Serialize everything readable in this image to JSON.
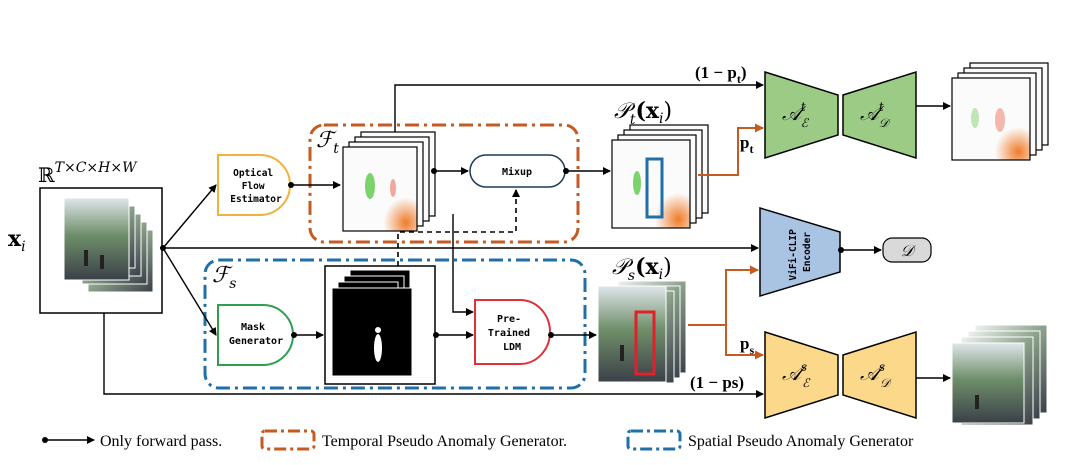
{
  "input": {
    "dims": "ℝ^{T×C×H×W}",
    "dims_base": "ℝ",
    "dims_sup": "T×C×H×W",
    "var": "x",
    "var_sub": "i"
  },
  "blocks": {
    "optical_flow": [
      "Optical",
      "Flow",
      "Estimator"
    ],
    "mask_generator": [
      "Mask",
      "Generator"
    ],
    "mixup": "Mixup",
    "ldm": [
      "Pre-",
      "Trained",
      "LDM"
    ],
    "vifi": [
      "ViFi-CLIP",
      "Encoder"
    ],
    "d_out": "𝒟"
  },
  "groups": {
    "ft": {
      "main": "ℱ",
      "sub": "t"
    },
    "fs": {
      "main": "ℱ",
      "sub": "s"
    }
  },
  "pseudo": {
    "pt": {
      "main": "𝒫",
      "sub": "t",
      "arg": "(x",
      "arg_sub": "i",
      "close": ")"
    },
    "ps": {
      "main": "𝒫",
      "sub": "s",
      "arg": "(x",
      "arg_sub": "i",
      "close": ")"
    }
  },
  "autoencoders": {
    "temporal": {
      "enc": {
        "main": "𝒜",
        "sup": "t",
        "sub": "ℰ"
      },
      "dec": {
        "main": "𝒜",
        "sup": "t",
        "sub": "𝒟"
      }
    },
    "spatial": {
      "enc": {
        "main": "𝒜",
        "sup": "s",
        "sub": "ℰ"
      },
      "dec": {
        "main": "𝒜",
        "sup": "s",
        "sub": "𝒟"
      }
    }
  },
  "probs": {
    "one_minus_pt": {
      "text": "(1 − p",
      "sub": "t",
      "close": ")"
    },
    "pt": {
      "text": "p",
      "sub": "t"
    },
    "ps": {
      "text": "p",
      "sub": "s"
    },
    "one_minus_ps": "(1 − ps)"
  },
  "legend": {
    "forward": "Only forward pass.",
    "temporal": "Temporal Pseudo Anomaly Generator.",
    "spatial": "Spatial Pseudo Anomaly Generator"
  },
  "colors": {
    "orange": "#c55a22",
    "blue": "#1f6fa8",
    "green_fill": "#9ccb86",
    "yellow_fill": "#fbd88a",
    "blue_fill": "#a9c3e3",
    "gray_fill": "#d9d9d9",
    "optical_border": "#f2b13e",
    "mask_border": "#2e9e4f",
    "ldm_border": "#e0303a",
    "red_box": "#e0202a"
  }
}
